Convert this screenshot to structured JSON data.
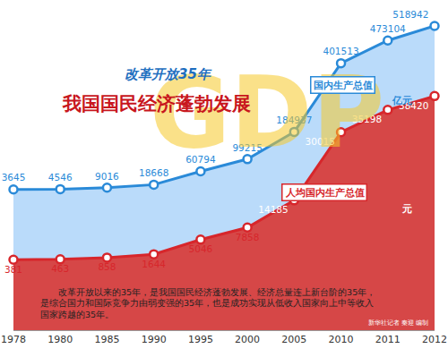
{
  "chart_data": {
    "type": "line",
    "watermark": "GDP",
    "subtitle": "改革开放35年",
    "title": "我国国民经济蓬勃发展",
    "categories": [
      "1978",
      "1980",
      "1985",
      "1990",
      "1995",
      "2000",
      "2005",
      "2010",
      "2011",
      "2012"
    ],
    "series": [
      {
        "name": "国内生产总值",
        "unit": "亿元",
        "color": "#2a8ad8",
        "values": [
          3645,
          4546,
          9016,
          18668,
          60794,
          99215,
          184937,
          401513,
          473104,
          518942
        ]
      },
      {
        "name": "人均国内生产总值",
        "unit": "元",
        "color": "#d7262b",
        "axis": "y2",
        "values": [
          381,
          463,
          858,
          1644,
          5046,
          7858,
          14185,
          30015,
          35198,
          38420
        ]
      }
    ],
    "ylim": [
      -440000,
      550000
    ],
    "yticks": [
      -440000,
      550000
    ],
    "y2lim": [
      -16000,
      57000
    ],
    "y2ticks": [
      -16000,
      57000
    ],
    "grid": false,
    "tick_labels": "x",
    "data_labels": true,
    "marker": "circle",
    "annotations": [
      "改革开放以来的35年，是我国国民经济蓬勃发展、经济总量连上新台阶的35年，",
      "是综合国力和国际竞争力由弱变强的35年，也是成功实现从低收入国家向上中等收入",
      "国家跨越的35年。"
    ],
    "credit": "新华社记者 秦迎 编制"
  }
}
